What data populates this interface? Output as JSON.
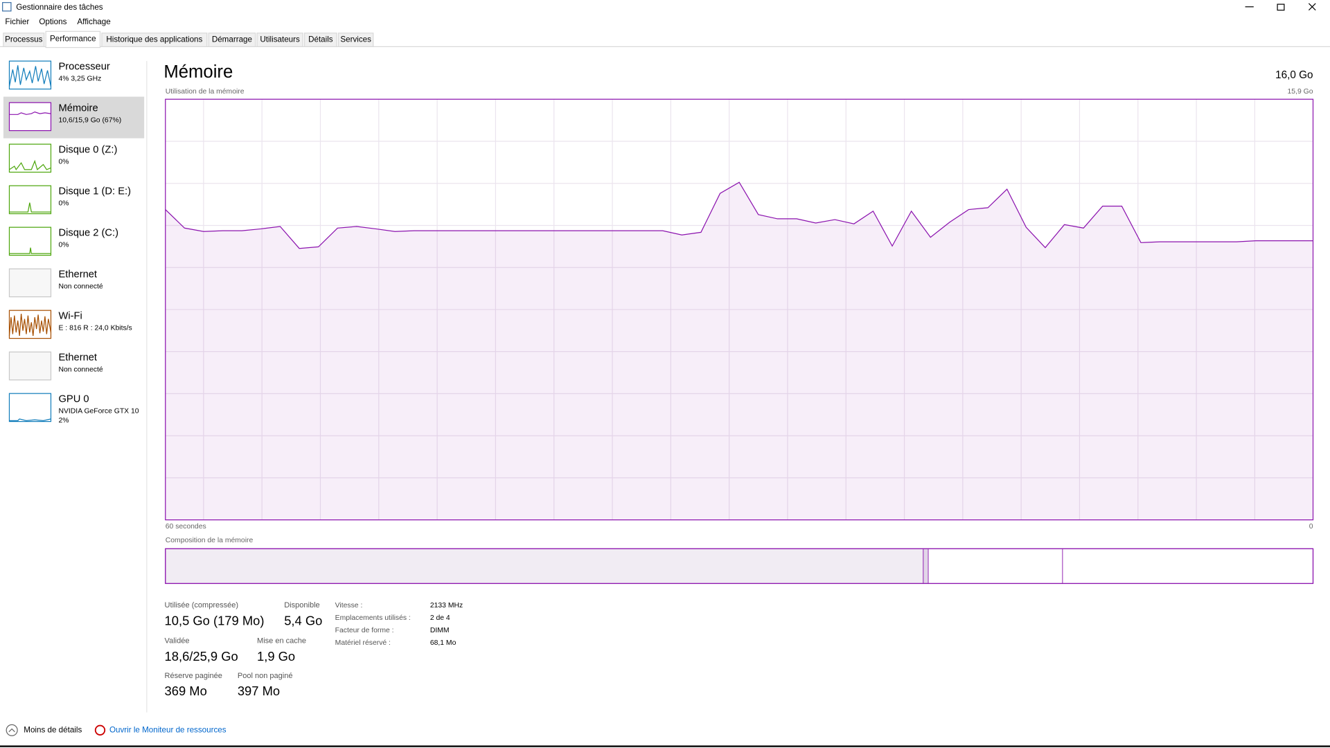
{
  "window": {
    "title": "Gestionnaire des tâches"
  },
  "menu": [
    "Fichier",
    "Options",
    "Affichage"
  ],
  "tabs": [
    "Processus",
    "Performance",
    "Historique des applications",
    "Démarrage",
    "Utilisateurs",
    "Détails",
    "Services"
  ],
  "sidebar": [
    {
      "name": "Processeur",
      "detail": "4% 3,25 GHz",
      "color": "#117dbb"
    },
    {
      "name": "Mémoire",
      "detail": "10,6/15,9 Go (67%)",
      "color": "#8b12ae"
    },
    {
      "name": "Disque 0 (Z:)",
      "detail": "0%",
      "color": "#4da60c"
    },
    {
      "name": "Disque 1 (D: E:)",
      "detail": "0%",
      "color": "#4da60c"
    },
    {
      "name": "Disque 2 (C:)",
      "detail": "0%",
      "color": "#4da60c"
    },
    {
      "name": "Ethernet",
      "detail": "Non connecté",
      "color": "#c8c8c8"
    },
    {
      "name": "Wi-Fi",
      "detail": "E : 816 R : 24,0 Kbits/s",
      "color": "#a74f01"
    },
    {
      "name": "Ethernet",
      "detail": "Non connecté",
      "color": "#c8c8c8"
    },
    {
      "name": "GPU 0",
      "detail": "NVIDIA GeForce GTX 10",
      "detail2": "2%",
      "color": "#117dbb"
    }
  ],
  "header": {
    "title": "Mémoire",
    "capacity": "16,0 Go"
  },
  "chart_data": {
    "type": "line",
    "title": "Utilisation de la mémoire",
    "color": "#8b12ae",
    "xlim": [
      60,
      0
    ],
    "ylim": [
      0,
      15.9
    ],
    "xticks": [
      {
        "value": 60,
        "label": "60 secondes"
      },
      {
        "value": 0,
        "label": "0"
      }
    ],
    "yticks": [
      {
        "value": 15.9,
        "label": "15,9 Go"
      }
    ],
    "x": [
      60,
      59,
      58,
      57,
      56,
      55,
      54,
      53,
      52,
      51,
      50,
      49,
      48,
      47,
      46,
      45,
      44,
      43,
      42,
      41,
      40,
      39,
      38,
      37,
      36,
      35,
      34,
      33,
      32,
      31,
      30,
      29,
      28,
      27,
      26,
      25,
      24,
      23,
      22,
      21,
      20,
      19,
      18,
      17,
      16,
      15,
      14,
      13,
      12,
      11,
      10,
      9,
      8,
      7,
      6,
      5,
      4,
      3,
      2,
      1,
      0
    ],
    "values": [
      11.73,
      11.03,
      10.9,
      10.93,
      10.93,
      11.0,
      11.09,
      10.26,
      10.32,
      11.03,
      11.09,
      11.0,
      10.9,
      10.93,
      10.93,
      10.93,
      10.93,
      10.93,
      10.93,
      10.93,
      10.93,
      10.93,
      10.93,
      10.93,
      10.93,
      10.93,
      10.93,
      10.77,
      10.87,
      12.34,
      12.76,
      11.54,
      11.38,
      11.38,
      11.22,
      11.35,
      11.19,
      11.67,
      10.35,
      11.67,
      10.68,
      11.25,
      11.73,
      11.8,
      12.5,
      11.06,
      10.29,
      11.16,
      11.03,
      11.86,
      11.86,
      10.48,
      10.51,
      10.51,
      10.51,
      10.51,
      10.51,
      10.55,
      10.55,
      10.55,
      10.55
    ]
  },
  "composition": {
    "title": "Composition de la mémoire",
    "values": [
      10.5,
      0.07,
      1.86,
      3.47
    ]
  },
  "stats": [
    {
      "label": "Utilisée (compressée)",
      "value": "10,5 Go (179 Mo)"
    },
    {
      "label": "Disponible",
      "value": "5,4 Go"
    },
    {
      "label": "Validée",
      "value": "18,6/25,9 Go"
    },
    {
      "label": "Mise en cache",
      "value": "1,9 Go"
    },
    {
      "label": "Réserve paginée",
      "value": "369 Mo"
    },
    {
      "label": "Pool non paginé",
      "value": "397 Mo"
    }
  ],
  "properties": [
    {
      "label": "Vitesse :",
      "value": "2133 MHz"
    },
    {
      "label": "Emplacements utilisés :",
      "value": "2 de 4"
    },
    {
      "label": "Facteur de forme :",
      "value": "DIMM"
    },
    {
      "label": "Matériel réservé :",
      "value": "68,1 Mo"
    }
  ],
  "footer": {
    "less": "Moins de détails",
    "monitor": "Ouvrir le Moniteur de ressources"
  }
}
